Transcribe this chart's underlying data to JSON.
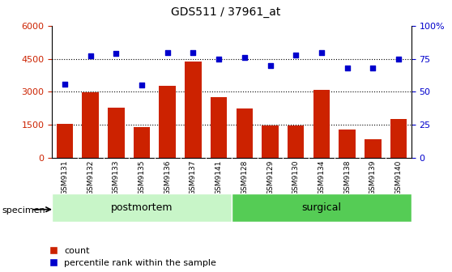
{
  "title": "GDS511 / 37961_at",
  "samples": [
    "GSM9131",
    "GSM9132",
    "GSM9133",
    "GSM9135",
    "GSM9136",
    "GSM9137",
    "GSM9141",
    "GSM9128",
    "GSM9129",
    "GSM9130",
    "GSM9134",
    "GSM9138",
    "GSM9139",
    "GSM9140"
  ],
  "counts": [
    1550,
    2980,
    2280,
    1380,
    3280,
    4380,
    2750,
    2250,
    1480,
    1480,
    3080,
    1280,
    850,
    1780
  ],
  "percentiles": [
    56,
    77,
    79,
    55,
    80,
    80,
    75,
    76,
    70,
    78,
    80,
    68,
    68,
    75
  ],
  "groups": [
    {
      "label": "postmortem",
      "start": 0,
      "end": 7,
      "color": "#c8f5c8"
    },
    {
      "label": "surgical",
      "start": 7,
      "end": 14,
      "color": "#55cc55"
    }
  ],
  "bar_color": "#cc2200",
  "dot_color": "#0000cc",
  "ylim_left": [
    0,
    6000
  ],
  "ylim_right": [
    0,
    100
  ],
  "yticks_left": [
    0,
    1500,
    3000,
    4500,
    6000
  ],
  "yticks_right": [
    0,
    25,
    50,
    75,
    100
  ],
  "grid_values": [
    1500,
    3000,
    4500
  ],
  "legend_count_label": "count",
  "legend_pct_label": "percentile rank within the sample",
  "specimen_label": "specimen",
  "tick_label_color_left": "#cc2200",
  "tick_label_color_right": "#0000cc",
  "xtick_bg_color": "#d8d8d8",
  "postmortem_color": "#c8f5c8",
  "surgical_color": "#55cc55"
}
